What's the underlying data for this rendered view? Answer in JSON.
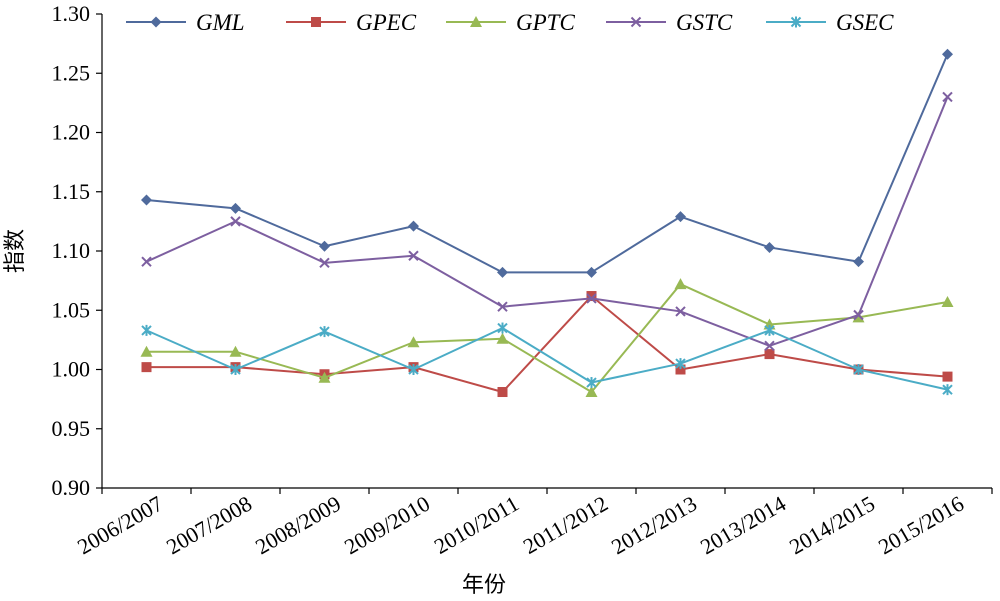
{
  "chart_data": {
    "type": "line",
    "title": "",
    "xlabel": "年份",
    "ylabel": "指数",
    "categories": [
      "2006/2007",
      "2007/2008",
      "2008/2009",
      "2009/2010",
      "2010/2011",
      "2011/2012",
      "2012/2013",
      "2013/2014",
      "2014/2015",
      "2015/2016"
    ],
    "ylim": [
      0.9,
      1.3
    ],
    "yticks": [
      "0.90",
      "0.95",
      "1.00",
      "1.05",
      "1.10",
      "1.15",
      "1.20",
      "1.25",
      "1.30"
    ],
    "grid": false,
    "legend_position": "top",
    "series": [
      {
        "name": "GML",
        "color": "#4F6A9C",
        "marker": "diamond",
        "values": [
          1.143,
          1.136,
          1.104,
          1.121,
          1.082,
          1.082,
          1.129,
          1.103,
          1.091,
          1.266
        ]
      },
      {
        "name": "GPEC",
        "color": "#BE4B48",
        "marker": "square",
        "values": [
          1.002,
          1.002,
          0.996,
          1.002,
          0.981,
          1.062,
          1.0,
          1.013,
          1.0,
          0.994
        ]
      },
      {
        "name": "GPTC",
        "color": "#98B954",
        "marker": "triangle",
        "values": [
          1.015,
          1.015,
          0.993,
          1.023,
          1.026,
          0.981,
          1.072,
          1.038,
          1.044,
          1.057
        ]
      },
      {
        "name": "GSTC",
        "color": "#7D5FA0",
        "marker": "x",
        "values": [
          1.091,
          1.125,
          1.09,
          1.096,
          1.053,
          1.06,
          1.049,
          1.02,
          1.046,
          1.23
        ]
      },
      {
        "name": "GSEC",
        "color": "#4BACC6",
        "marker": "star",
        "values": [
          1.033,
          1.0,
          1.032,
          1.0,
          1.035,
          0.989,
          1.005,
          1.033,
          1.0,
          0.983
        ]
      }
    ]
  }
}
